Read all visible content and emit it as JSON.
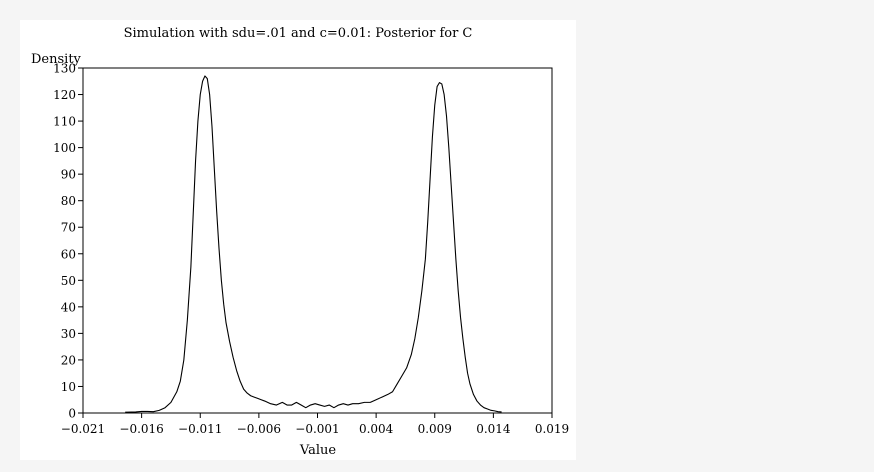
{
  "chart_data": {
    "type": "line",
    "title": "Simulation with sdu=.01 and c=0.01: Posterior for C",
    "xlabel": "Value",
    "ylabel": "Density",
    "xlim": [
      -0.021,
      0.019
    ],
    "ylim": [
      0,
      130
    ],
    "x_ticks": [
      -0.021,
      -0.016,
      -0.011,
      -0.006,
      -0.001,
      0.004,
      0.009,
      0.014,
      0.019
    ],
    "x_tick_labels": [
      "−0.021",
      "−0.016",
      "−0.011",
      "−0.006",
      "−0.001",
      "0.004",
      "0.009",
      "0.014",
      "0.019"
    ],
    "y_ticks": [
      0,
      10,
      20,
      30,
      40,
      50,
      60,
      70,
      80,
      90,
      100,
      110,
      120,
      130
    ],
    "y_tick_labels": [
      "0",
      "10",
      "20",
      "30",
      "40",
      "50",
      "60",
      "70",
      "80",
      "90",
      "100",
      "110",
      "120",
      "130"
    ],
    "grid": false,
    "legend": "none",
    "line_color": "#000000",
    "series": [
      {
        "x": [
          -0.0174,
          -0.0165,
          -0.016,
          -0.0155,
          -0.015,
          -0.0145,
          -0.014,
          -0.0135,
          -0.013,
          -0.0127,
          -0.0124,
          -0.0121,
          -0.0118,
          -0.0116,
          -0.0114,
          -0.0112,
          -0.011,
          -0.0108,
          -0.0106,
          -0.0104,
          -0.0102,
          -0.01,
          -0.0098,
          -0.0096,
          -0.0094,
          -0.0092,
          -0.009,
          -0.0088,
          -0.0085,
          -0.0082,
          -0.0079,
          -0.0076,
          -0.0073,
          -0.007,
          -0.0067,
          -0.0064,
          -0.0061,
          -0.0058,
          -0.0055,
          -0.005,
          -0.0045,
          -0.004,
          -0.0036,
          -0.0032,
          -0.0028,
          -0.0024,
          -0.002,
          -0.0016,
          -0.0012,
          -0.0008,
          -0.0004,
          0.0,
          0.0004,
          0.0008,
          0.0012,
          0.0016,
          0.002,
          0.0025,
          0.003,
          0.0035,
          0.004,
          0.0045,
          0.005,
          0.0054,
          0.0058,
          0.0062,
          0.0066,
          0.007,
          0.0073,
          0.0076,
          0.0079,
          0.0082,
          0.0084,
          0.0086,
          0.0088,
          0.009,
          0.0092,
          0.0094,
          0.0096,
          0.0098,
          0.01,
          0.0102,
          0.0104,
          0.0106,
          0.0108,
          0.011,
          0.0112,
          0.0114,
          0.0116,
          0.0118,
          0.012,
          0.0123,
          0.0126,
          0.0129,
          0.0132,
          0.0135,
          0.0138,
          0.0141,
          0.0144,
          0.0147
        ],
        "y": [
          0.3,
          0.4,
          0.6,
          0.6,
          0.5,
          1.0,
          2.0,
          4.0,
          8.0,
          12.0,
          20.0,
          35.0,
          55.0,
          75.0,
          95.0,
          110.0,
          120.0,
          125.0,
          127.0,
          126.0,
          120.0,
          108.0,
          92.0,
          76.0,
          62.0,
          50.0,
          41.0,
          34.0,
          27.0,
          21.0,
          16.0,
          12.0,
          9.0,
          7.5,
          6.5,
          6.0,
          5.5,
          5.0,
          4.5,
          3.5,
          3.0,
          4.0,
          3.0,
          3.0,
          4.0,
          3.0,
          2.0,
          3.0,
          3.5,
          3.0,
          2.5,
          3.0,
          2.0,
          3.0,
          3.5,
          3.0,
          3.5,
          3.5,
          4.0,
          4.0,
          5.0,
          6.0,
          7.0,
          8.0,
          11.0,
          14.0,
          17.0,
          22.0,
          28.0,
          36.0,
          46.0,
          58.0,
          72.0,
          88.0,
          104.0,
          116.0,
          123.0,
          124.5,
          124.0,
          120.0,
          112.0,
          100.0,
          86.0,
          72.0,
          58.0,
          46.0,
          36.0,
          28.0,
          21.0,
          15.0,
          11.0,
          7.0,
          4.5,
          3.0,
          2.0,
          1.5,
          1.0,
          0.8,
          0.5,
          0.4
        ]
      }
    ]
  }
}
